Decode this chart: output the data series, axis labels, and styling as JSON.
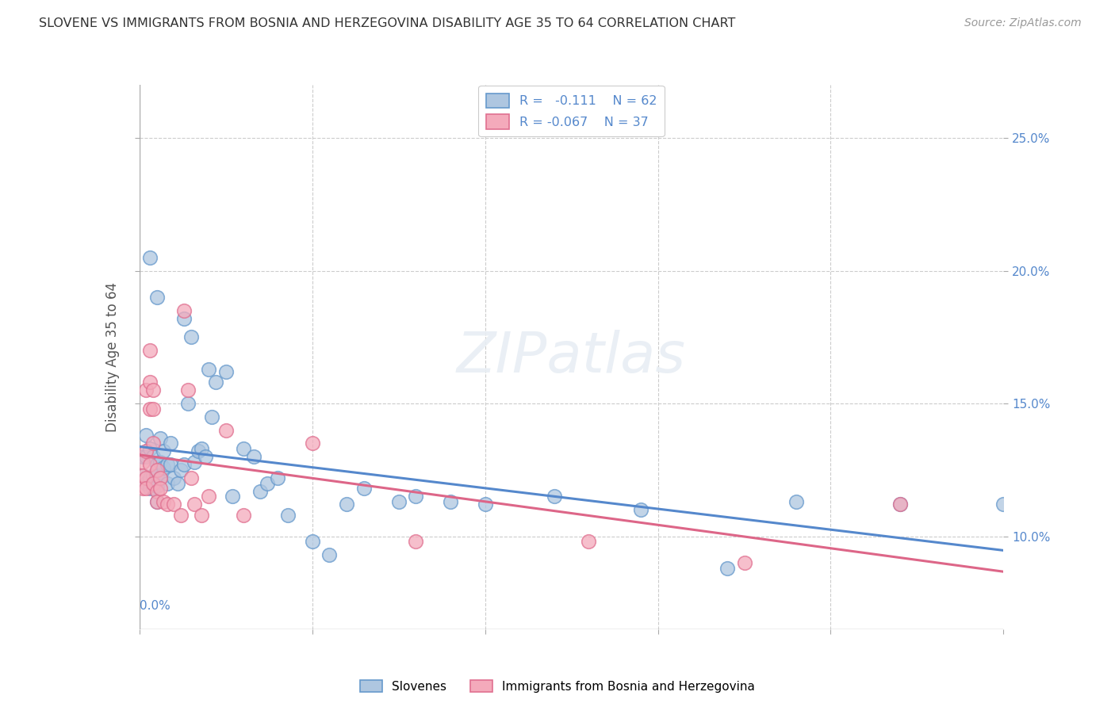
{
  "title": "SLOVENE VS IMMIGRANTS FROM BOSNIA AND HERZEGOVINA DISABILITY AGE 35 TO 64 CORRELATION CHART",
  "source": "Source: ZipAtlas.com",
  "ylabel": "Disability Age 35 to 64",
  "ytick_values": [
    0.1,
    0.15,
    0.2,
    0.25
  ],
  "xlim": [
    0.0,
    0.25
  ],
  "ylim": [
    0.065,
    0.27
  ],
  "r_slovene": -0.111,
  "n_slovene": 62,
  "r_bosnia": -0.067,
  "n_bosnia": 37,
  "color_slovene_fill": "#aec6e0",
  "color_slovene_edge": "#6699cc",
  "color_bosnia_fill": "#f4aabb",
  "color_bosnia_edge": "#e07090",
  "color_line_slovene": "#5588cc",
  "color_line_bosnia": "#dd6688",
  "color_axis_text": "#5588cc",
  "color_grid": "#cccccc",
  "slovene_x": [
    0.001,
    0.001,
    0.002,
    0.002,
    0.002,
    0.003,
    0.003,
    0.003,
    0.003,
    0.004,
    0.004,
    0.004,
    0.005,
    0.005,
    0.005,
    0.005,
    0.005,
    0.006,
    0.006,
    0.006,
    0.007,
    0.007,
    0.008,
    0.008,
    0.009,
    0.009,
    0.01,
    0.011,
    0.012,
    0.013,
    0.013,
    0.014,
    0.015,
    0.016,
    0.017,
    0.018,
    0.019,
    0.02,
    0.021,
    0.022,
    0.025,
    0.027,
    0.03,
    0.033,
    0.035,
    0.037,
    0.04,
    0.043,
    0.05,
    0.055,
    0.06,
    0.065,
    0.075,
    0.08,
    0.09,
    0.1,
    0.12,
    0.145,
    0.17,
    0.19,
    0.22,
    0.25
  ],
  "slovene_y": [
    0.13,
    0.123,
    0.138,
    0.13,
    0.12,
    0.205,
    0.133,
    0.122,
    0.118,
    0.13,
    0.123,
    0.118,
    0.19,
    0.127,
    0.123,
    0.119,
    0.113,
    0.137,
    0.128,
    0.122,
    0.132,
    0.126,
    0.127,
    0.12,
    0.135,
    0.127,
    0.122,
    0.12,
    0.125,
    0.182,
    0.127,
    0.15,
    0.175,
    0.128,
    0.132,
    0.133,
    0.13,
    0.163,
    0.145,
    0.158,
    0.162,
    0.115,
    0.133,
    0.13,
    0.117,
    0.12,
    0.122,
    0.108,
    0.098,
    0.093,
    0.112,
    0.118,
    0.113,
    0.115,
    0.113,
    0.112,
    0.115,
    0.11,
    0.088,
    0.113,
    0.112,
    0.112
  ],
  "bosnia_x": [
    0.001,
    0.001,
    0.001,
    0.002,
    0.002,
    0.002,
    0.002,
    0.003,
    0.003,
    0.003,
    0.003,
    0.004,
    0.004,
    0.004,
    0.004,
    0.005,
    0.005,
    0.005,
    0.006,
    0.006,
    0.007,
    0.008,
    0.01,
    0.012,
    0.013,
    0.014,
    0.015,
    0.016,
    0.018,
    0.02,
    0.025,
    0.03,
    0.05,
    0.08,
    0.13,
    0.175,
    0.22
  ],
  "bosnia_y": [
    0.128,
    0.123,
    0.118,
    0.155,
    0.132,
    0.122,
    0.118,
    0.17,
    0.158,
    0.148,
    0.127,
    0.155,
    0.148,
    0.135,
    0.12,
    0.125,
    0.117,
    0.113,
    0.122,
    0.118,
    0.113,
    0.112,
    0.112,
    0.108,
    0.185,
    0.155,
    0.122,
    0.112,
    0.108,
    0.115,
    0.14,
    0.108,
    0.135,
    0.098,
    0.098,
    0.09,
    0.112
  ]
}
